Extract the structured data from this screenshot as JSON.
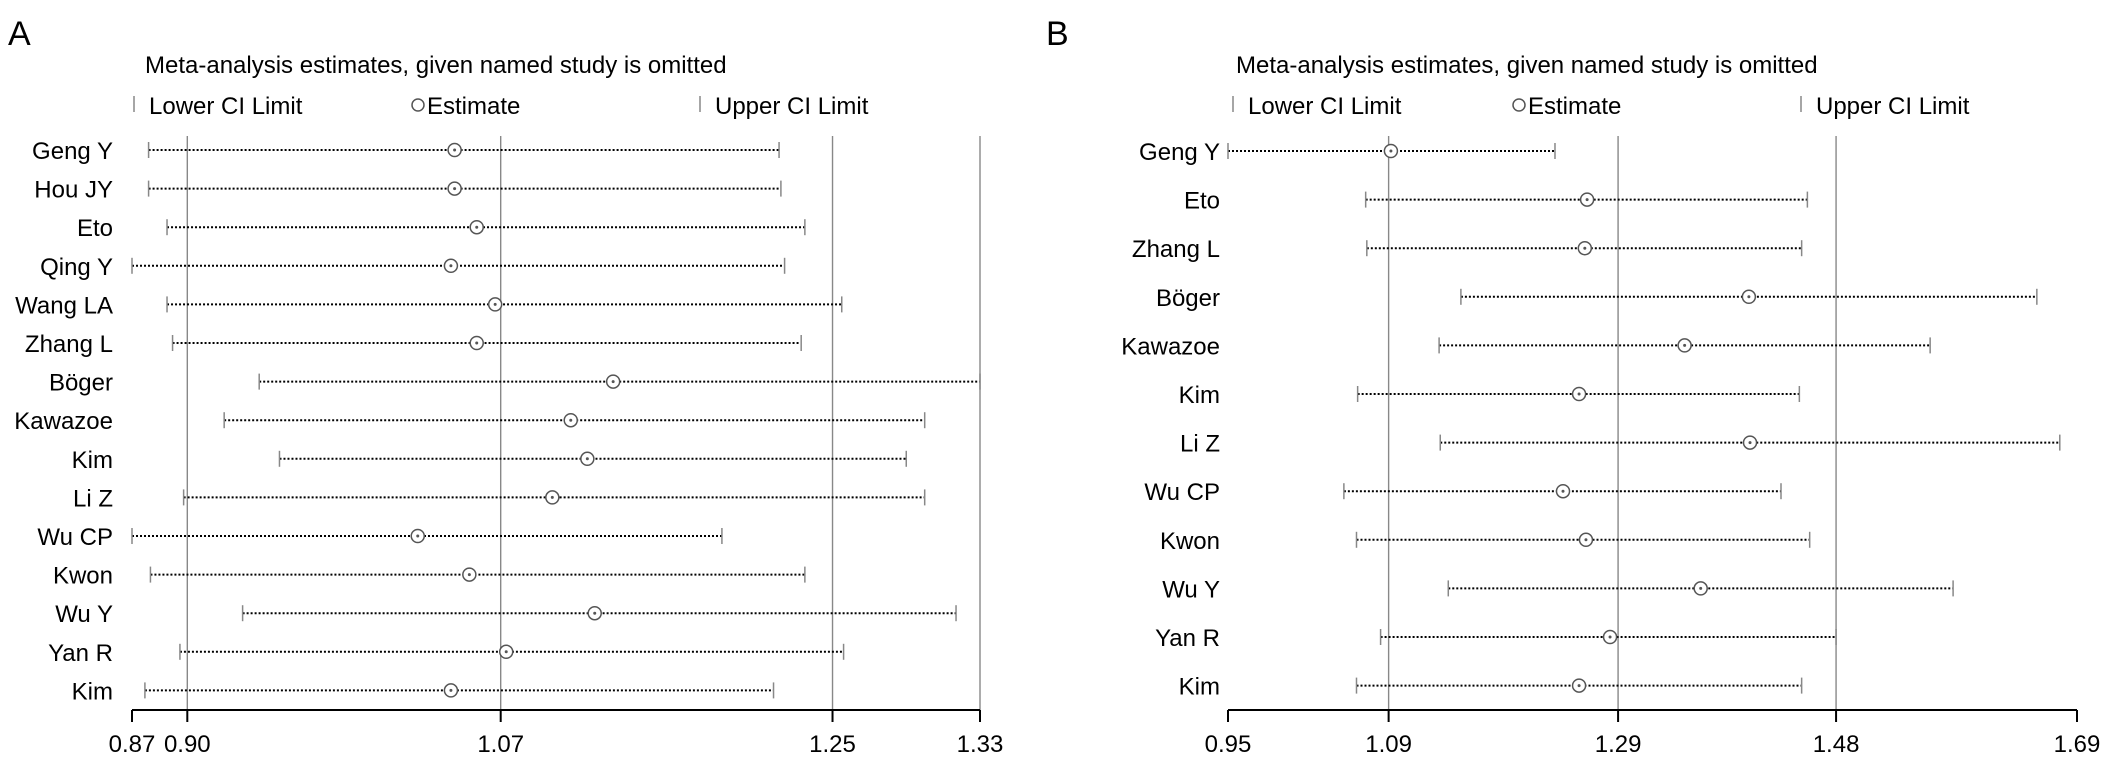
{
  "chart_data": [
    {
      "type": "forest",
      "panel_label": "A",
      "title": "Meta-analysis estimates, given named study is omitted",
      "legend": [
        "Lower CI Limit",
        "Estimate",
        "Upper CI Limit"
      ],
      "xticks": [
        0.87,
        0.9,
        1.07,
        1.25,
        1.33
      ],
      "xlim": [
        0.87,
        1.33
      ],
      "reference_lines": [
        0.9,
        1.07,
        1.25,
        1.33
      ],
      "studies": [
        {
          "name": "Geng Y",
          "lower": 0.879,
          "estimate": 1.045,
          "upper": 1.221
        },
        {
          "name": "Hou JY",
          "lower": 0.879,
          "estimate": 1.045,
          "upper": 1.222
        },
        {
          "name": "Eto",
          "lower": 0.889,
          "estimate": 1.057,
          "upper": 1.235
        },
        {
          "name": "Qing Y",
          "lower": 0.87,
          "estimate": 1.043,
          "upper": 1.224
        },
        {
          "name": "Wang LA",
          "lower": 0.889,
          "estimate": 1.067,
          "upper": 1.255
        },
        {
          "name": "Zhang L",
          "lower": 0.892,
          "estimate": 1.057,
          "upper": 1.233
        },
        {
          "name": "Böger",
          "lower": 0.939,
          "estimate": 1.131,
          "upper": 1.33
        },
        {
          "name": "Kawazoe",
          "lower": 0.92,
          "estimate": 1.108,
          "upper": 1.3
        },
        {
          "name": "Kim",
          "lower": 0.95,
          "estimate": 1.117,
          "upper": 1.29
        },
        {
          "name": "Li Z",
          "lower": 0.898,
          "estimate": 1.098,
          "upper": 1.3
        },
        {
          "name": "Wu CP",
          "lower": 0.87,
          "estimate": 1.025,
          "upper": 1.19
        },
        {
          "name": "Kwon",
          "lower": 0.88,
          "estimate": 1.053,
          "upper": 1.235
        },
        {
          "name": "Wu Y",
          "lower": 0.93,
          "estimate": 1.121,
          "upper": 1.317
        },
        {
          "name": "Yan R",
          "lower": 0.896,
          "estimate": 1.073,
          "upper": 1.256
        },
        {
          "name": "Kim",
          "lower": 0.877,
          "estimate": 1.043,
          "upper": 1.218
        }
      ]
    },
    {
      "type": "forest",
      "panel_label": "B",
      "title": "Meta-analysis estimates, given named study is omitted",
      "legend": [
        "Lower CI Limit",
        "Estimate",
        "Upper CI Limit"
      ],
      "xticks": [
        0.95,
        1.09,
        1.29,
        1.48,
        1.69
      ],
      "xlim": [
        0.95,
        1.69
      ],
      "reference_lines": [
        1.09,
        1.29,
        1.48
      ],
      "studies": [
        {
          "name": "Geng Y",
          "lower": 0.95,
          "estimate": 1.092,
          "upper": 1.235
        },
        {
          "name": "Eto",
          "lower": 1.07,
          "estimate": 1.263,
          "upper": 1.455
        },
        {
          "name": "Zhang L",
          "lower": 1.071,
          "estimate": 1.261,
          "upper": 1.45
        },
        {
          "name": "Böger",
          "lower": 1.153,
          "estimate": 1.404,
          "upper": 1.655
        },
        {
          "name": "Kawazoe",
          "lower": 1.134,
          "estimate": 1.348,
          "upper": 1.562
        },
        {
          "name": "Kim",
          "lower": 1.063,
          "estimate": 1.256,
          "upper": 1.448
        },
        {
          "name": "Li Z",
          "lower": 1.135,
          "estimate": 1.405,
          "upper": 1.675
        },
        {
          "name": "Wu CP",
          "lower": 1.051,
          "estimate": 1.242,
          "upper": 1.432
        },
        {
          "name": "Kwon",
          "lower": 1.062,
          "estimate": 1.262,
          "upper": 1.457
        },
        {
          "name": "Wu Y",
          "lower": 1.142,
          "estimate": 1.362,
          "upper": 1.582
        },
        {
          "name": "Yan R",
          "lower": 1.083,
          "estimate": 1.283,
          "upper": 1.48
        },
        {
          "name": "Kim",
          "lower": 1.062,
          "estimate": 1.256,
          "upper": 1.45
        }
      ]
    }
  ]
}
